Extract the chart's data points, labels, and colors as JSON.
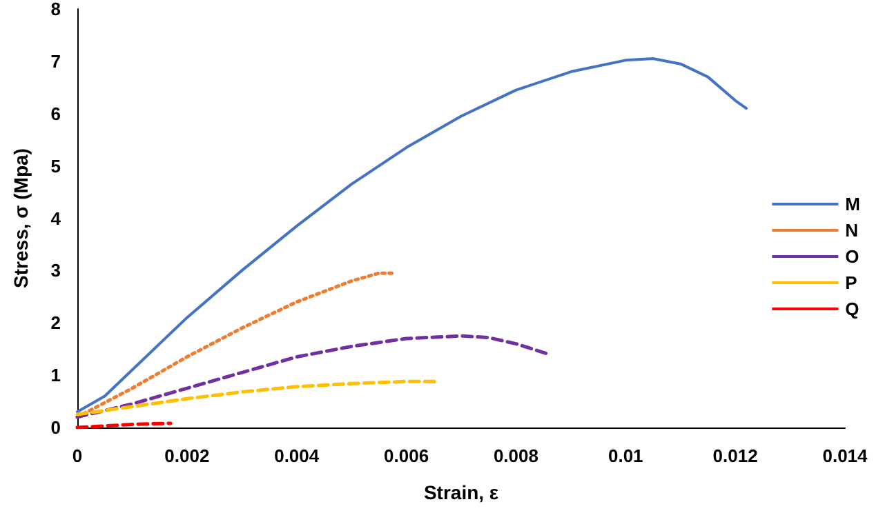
{
  "chart_data": {
    "type": "line",
    "xlabel": "Strain, ε",
    "ylabel": "Stress, σ (Mpa)",
    "xlim": [
      0,
      0.014
    ],
    "xticks": [
      0,
      0.002,
      0.004,
      0.006,
      0.008,
      0.01,
      0.012,
      0.014
    ],
    "ylim": [
      0,
      8
    ],
    "yticks": [
      0,
      1,
      2,
      3,
      4,
      5,
      6,
      7,
      8
    ],
    "grid": false,
    "legend": "right",
    "marker": "none",
    "series": [
      {
        "name": "M",
        "color": "#4472c4",
        "line_style": "solid",
        "x": [
          0,
          0.0005,
          0.001,
          0.002,
          0.003,
          0.004,
          0.005,
          0.006,
          0.007,
          0.008,
          0.009,
          0.01,
          0.0105,
          0.011,
          0.0115,
          0.012,
          0.0122
        ],
        "values": [
          0.3,
          0.6,
          1.1,
          2.1,
          3.0,
          3.85,
          4.65,
          5.35,
          5.95,
          6.45,
          6.8,
          7.02,
          7.05,
          6.95,
          6.7,
          6.25,
          6.1
        ]
      },
      {
        "name": "N",
        "color": "#ed7d31",
        "line_style": "dotted",
        "x": [
          0,
          0.001,
          0.002,
          0.003,
          0.004,
          0.005,
          0.0055,
          0.0058
        ],
        "values": [
          0.2,
          0.75,
          1.35,
          1.9,
          2.4,
          2.8,
          2.95,
          2.95
        ]
      },
      {
        "name": "O",
        "color": "#7030a0",
        "line_style": "dashed",
        "x": [
          0,
          0.001,
          0.002,
          0.003,
          0.004,
          0.005,
          0.006,
          0.007,
          0.0075,
          0.008,
          0.0086
        ],
        "values": [
          0.2,
          0.45,
          0.75,
          1.05,
          1.35,
          1.55,
          1.7,
          1.75,
          1.72,
          1.6,
          1.4
        ]
      },
      {
        "name": "P",
        "color": "#ffc000",
        "line_style": "dashed",
        "x": [
          0,
          0.001,
          0.002,
          0.003,
          0.004,
          0.005,
          0.006,
          0.0065,
          0.0066
        ],
        "values": [
          0.25,
          0.4,
          0.55,
          0.68,
          0.78,
          0.84,
          0.88,
          0.88,
          0.85
        ]
      },
      {
        "name": "Q",
        "color": "#ff0000",
        "line_style": "dashed",
        "x": [
          0,
          0.0005,
          0.001,
          0.0017
        ],
        "values": [
          0,
          0.03,
          0.06,
          0.08
        ]
      }
    ]
  }
}
